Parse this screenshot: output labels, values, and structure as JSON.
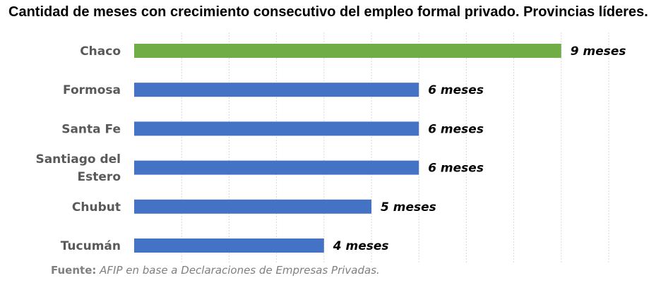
{
  "chart_data": {
    "type": "bar",
    "orientation": "horizontal",
    "title": "Cantidad de meses con crecimiento consecutivo del empleo formal privado. Provincias líderes.",
    "categories": [
      "Chaco",
      "Formosa",
      "Santa Fe",
      "Santiago del Estero",
      "Chubut",
      "Tucumán"
    ],
    "category_lines": [
      [
        "Chaco"
      ],
      [
        "Formosa"
      ],
      [
        "Santa Fe"
      ],
      [
        "Santiago del",
        "Estero"
      ],
      [
        "Chubut"
      ],
      [
        "Tucumán"
      ]
    ],
    "values": [
      9,
      6,
      6,
      6,
      5,
      4
    ],
    "data_labels": [
      "9 meses",
      "6 meses",
      "6 meses",
      "6 meses",
      "5 meses",
      "4 meses"
    ],
    "xlim": [
      0,
      10
    ],
    "grid": true,
    "legend": "none",
    "colors": {
      "highlight": "#70AD47",
      "default": "#4472C4",
      "grid": "#d9d9d9"
    },
    "highlight_index": 0
  },
  "source": {
    "label": "Fuente:",
    "text": "AFIP en base a Declaraciones de Empresas Privadas."
  }
}
